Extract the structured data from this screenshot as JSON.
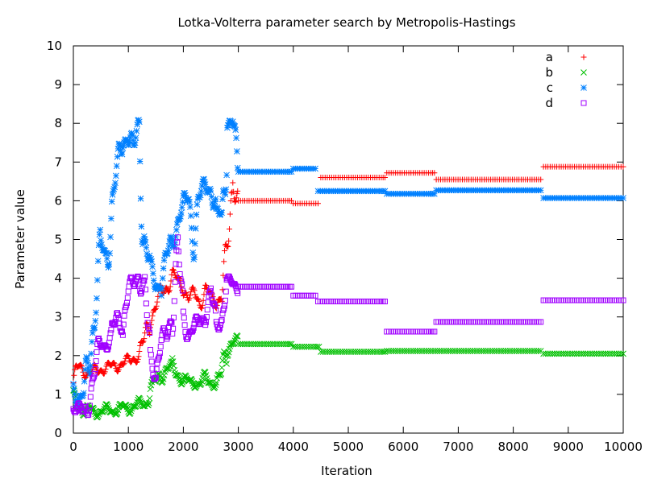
{
  "chart_data": {
    "type": "scatter",
    "title": "Lotka-Volterra parameter search by Metropolis-Hastings",
    "xlabel": "Iteration",
    "ylabel": "Parameter value",
    "xlim": [
      0,
      10000
    ],
    "ylim": [
      0,
      10
    ],
    "xticks": [
      0,
      1000,
      2000,
      3000,
      4000,
      5000,
      6000,
      7000,
      8000,
      9000,
      10000
    ],
    "yticks": [
      0,
      1,
      2,
      3,
      4,
      5,
      6,
      7,
      8,
      9,
      10
    ],
    "grid": false,
    "legend_position": "top-right",
    "series": [
      {
        "name": "a",
        "color": "#ff0000",
        "marker": "plus",
        "x": [
          0,
          100,
          200,
          300,
          400,
          500,
          600,
          700,
          800,
          900,
          1000,
          1100,
          1200,
          1300,
          1400,
          1500,
          1600,
          1700,
          1800,
          1900,
          2000,
          2100,
          2200,
          2300,
          2400,
          2500,
          2600,
          2700,
          2800,
          2900,
          3000,
          3900,
          4000,
          4450,
          4500,
          5600,
          5700,
          6500,
          6600,
          8500,
          8550,
          10000
        ],
        "y": [
          1.3,
          1.7,
          1.6,
          1.55,
          1.6,
          1.65,
          1.7,
          1.72,
          1.75,
          1.8,
          1.85,
          1.95,
          2.0,
          2.4,
          3.0,
          3.3,
          3.6,
          3.8,
          4.1,
          3.9,
          3.8,
          3.5,
          3.6,
          3.4,
          3.7,
          3.5,
          3.4,
          3.6,
          4.6,
          6.7,
          6.0,
          6.0,
          5.93,
          5.93,
          6.6,
          6.6,
          6.72,
          6.72,
          6.55,
          6.55,
          6.88,
          6.88
        ]
      },
      {
        "name": "b",
        "color": "#00c000",
        "marker": "x",
        "x": [
          0,
          100,
          200,
          300,
          400,
          500,
          600,
          700,
          800,
          900,
          1000,
          1100,
          1200,
          1300,
          1400,
          1500,
          1600,
          1700,
          1800,
          1900,
          2000,
          2100,
          2200,
          2300,
          2400,
          2500,
          2600,
          2700,
          2800,
          2900,
          3000,
          3900,
          4000,
          4400,
          4500,
          5600,
          5700,
          8500,
          8550,
          10000
        ],
        "y": [
          0.9,
          0.75,
          0.6,
          0.6,
          0.55,
          0.55,
          0.6,
          0.6,
          0.6,
          0.65,
          0.65,
          0.7,
          0.75,
          0.75,
          1.2,
          1.3,
          1.5,
          1.7,
          1.7,
          1.5,
          1.4,
          1.3,
          1.3,
          1.3,
          1.4,
          1.3,
          1.3,
          1.5,
          2.2,
          2.4,
          2.3,
          2.3,
          2.23,
          2.23,
          2.1,
          2.1,
          2.12,
          2.12,
          2.05,
          2.05
        ]
      },
      {
        "name": "c",
        "color": "#0080ff",
        "marker": "star",
        "x": [
          0,
          100,
          200,
          300,
          400,
          500,
          600,
          700,
          800,
          900,
          1000,
          1100,
          1200,
          1300,
          1400,
          1500,
          1600,
          1700,
          1800,
          1900,
          2000,
          2100,
          2200,
          2300,
          2400,
          2500,
          2600,
          2700,
          2800,
          2900,
          3000,
          3900,
          4000,
          4400,
          4450,
          5600,
          5700,
          6500,
          6600,
          8500,
          8550,
          10000
        ],
        "y": [
          1.2,
          0.9,
          1.0,
          2.0,
          3.5,
          4.8,
          4.5,
          6.0,
          6.8,
          7.5,
          7.8,
          7.2,
          8.0,
          5.0,
          4.2,
          3.8,
          3.9,
          4.5,
          5.0,
          5.5,
          5.8,
          6.2,
          5.0,
          6.0,
          6.5,
          6.3,
          5.5,
          5.8,
          8.0,
          7.9,
          6.75,
          6.75,
          6.83,
          6.83,
          6.25,
          6.25,
          6.18,
          6.18,
          6.27,
          6.27,
          6.07,
          6.07
        ]
      },
      {
        "name": "d",
        "color": "#a000ff",
        "marker": "square",
        "x": [
          0,
          100,
          200,
          300,
          400,
          500,
          600,
          700,
          800,
          900,
          1000,
          1100,
          1200,
          1300,
          1400,
          1500,
          1600,
          1700,
          1800,
          1900,
          2000,
          2100,
          2200,
          2300,
          2400,
          2500,
          2600,
          2700,
          2800,
          2900,
          3000,
          3900,
          4000,
          4400,
          4450,
          5600,
          5700,
          6500,
          6600,
          8500,
          8550,
          10000
        ],
        "y": [
          0.7,
          0.6,
          0.5,
          1.0,
          1.6,
          2.3,
          2.3,
          2.5,
          3.0,
          2.8,
          3.6,
          3.9,
          4.2,
          3.4,
          2.0,
          1.6,
          2.3,
          2.6,
          3.2,
          4.5,
          3.0,
          2.6,
          2.7,
          2.9,
          3.1,
          3.5,
          2.8,
          3.0,
          3.9,
          3.9,
          3.78,
          3.78,
          3.55,
          3.55,
          3.4,
          3.4,
          2.62,
          2.62,
          2.87,
          2.87,
          3.43,
          3.43
        ]
      }
    ]
  }
}
